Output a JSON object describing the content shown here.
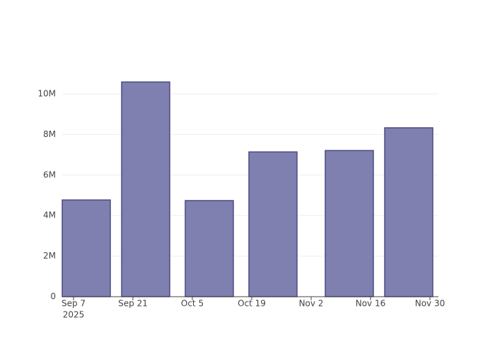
{
  "chart_data": {
    "type": "bar",
    "x": [
      "2025-09-10",
      "2025-09-24",
      "2025-10-09",
      "2025-10-24",
      "2025-11-11",
      "2025-11-25"
    ],
    "values": [
      4770000,
      10590000,
      4740000,
      7140000,
      7210000,
      8330000
    ],
    "color": "#7f7fb0",
    "edge_color": "#4b4b85",
    "xlim": [
      "2025-09-04T08:00",
      "2025-12-02"
    ],
    "xticks": [
      {
        "value": "2025-09-07",
        "label": "Sep 7"
      },
      {
        "value": "2025-09-21",
        "label": "Sep 21"
      },
      {
        "value": "2025-10-05",
        "label": "Oct 5"
      },
      {
        "value": "2025-10-19",
        "label": "Oct 19"
      },
      {
        "value": "2025-11-02",
        "label": "Nov 2"
      },
      {
        "value": "2025-11-16",
        "label": "Nov 16"
      },
      {
        "value": "2025-11-30",
        "label": "Nov 30"
      }
    ],
    "xtick_year": "2025",
    "ylim": [
      0,
      11150000
    ],
    "yticks": [
      0,
      {
        "value": 2000000,
        "label": "2M"
      },
      {
        "value": 4000000,
        "label": "4M"
      },
      {
        "value": 6000000,
        "label": "6M"
      },
      {
        "value": 8000000,
        "label": "8M"
      },
      {
        "value": 10000000,
        "label": "10M"
      }
    ],
    "grid": true
  }
}
